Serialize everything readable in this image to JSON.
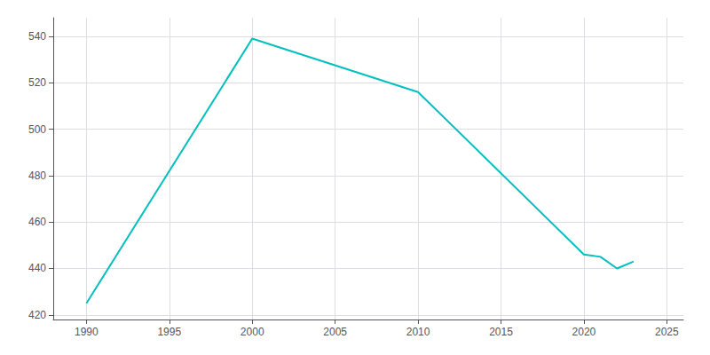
{
  "chart_data": {
    "type": "line",
    "x": [
      1990,
      2000,
      2010,
      2020,
      2021,
      2022,
      2023
    ],
    "values": [
      425,
      539,
      516,
      446,
      445,
      440,
      443
    ],
    "color": "#00BFBF",
    "xlim": [
      1988,
      2026
    ],
    "ylim": [
      418,
      548
    ],
    "xticks": [
      1990,
      1995,
      2000,
      2005,
      2010,
      2015,
      2020,
      2025
    ],
    "yticks": [
      420,
      440,
      460,
      480,
      500,
      520,
      540
    ],
    "grid": true
  }
}
